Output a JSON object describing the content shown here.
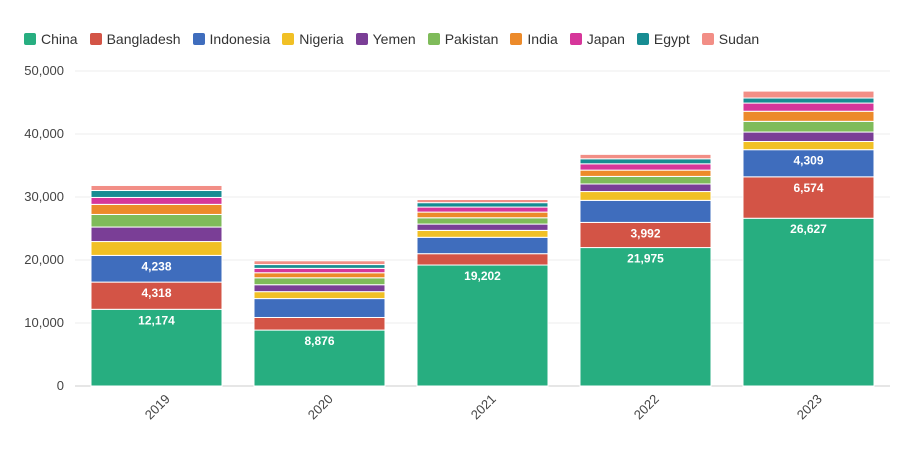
{
  "chart_data": {
    "type": "bar",
    "stacked": true,
    "title": "",
    "xlabel": "",
    "ylabel": "",
    "categories": [
      "2019",
      "2020",
      "2021",
      "2022",
      "2023"
    ],
    "ylim": [
      0,
      50000
    ],
    "yticks": [
      0,
      10000,
      20000,
      30000,
      40000,
      50000
    ],
    "ytick_labels": [
      "0",
      "10,000",
      "20,000",
      "30,000",
      "40,000",
      "50,000"
    ],
    "grid": true,
    "legend_position": "top-left",
    "series": [
      {
        "name": "China",
        "color": "#27ae80",
        "values": [
          12174,
          8876,
          19202,
          21975,
          26627
        ]
      },
      {
        "name": "Bangladesh",
        "color": "#d35446",
        "values": [
          4318,
          2000,
          1800,
          3992,
          6574
        ]
      },
      {
        "name": "Indonesia",
        "color": "#3f6dbd",
        "values": [
          4238,
          3000,
          2600,
          3500,
          4309
        ]
      },
      {
        "name": "Nigeria",
        "color": "#f1c025",
        "values": [
          2200,
          1100,
          1100,
          1400,
          1300
        ]
      },
      {
        "name": "Yemen",
        "color": "#7a3e96",
        "values": [
          2300,
          1100,
          1000,
          1200,
          1500
        ]
      },
      {
        "name": "Pakistan",
        "color": "#7fbb5a",
        "values": [
          2000,
          1100,
          1000,
          1200,
          1700
        ]
      },
      {
        "name": "India",
        "color": "#ec8a2a",
        "values": [
          1600,
          800,
          900,
          1000,
          1600
        ]
      },
      {
        "name": "Japan",
        "color": "#d6369a",
        "values": [
          1100,
          700,
          800,
          1000,
          1300
        ]
      },
      {
        "name": "Egypt",
        "color": "#178c92",
        "values": [
          1100,
          600,
          700,
          800,
          800
        ]
      },
      {
        "name": "Sudan",
        "color": "#f28e86",
        "values": [
          800,
          600,
          500,
          700,
          1100
        ]
      }
    ],
    "data_labels": [
      {
        "series": "China",
        "category": "2019",
        "text": "12,174"
      },
      {
        "series": "China",
        "category": "2020",
        "text": "8,876"
      },
      {
        "series": "China",
        "category": "2021",
        "text": "19,202"
      },
      {
        "series": "China",
        "category": "2022",
        "text": "21,975"
      },
      {
        "series": "China",
        "category": "2023",
        "text": "26,627"
      },
      {
        "series": "Bangladesh",
        "category": "2019",
        "text": "4,318"
      },
      {
        "series": "Bangladesh",
        "category": "2022",
        "text": "3,992"
      },
      {
        "series": "Bangladesh",
        "category": "2023",
        "text": "6,574"
      },
      {
        "series": "Indonesia",
        "category": "2019",
        "text": "4,238"
      },
      {
        "series": "Indonesia",
        "category": "2023",
        "text": "4,309"
      }
    ]
  }
}
